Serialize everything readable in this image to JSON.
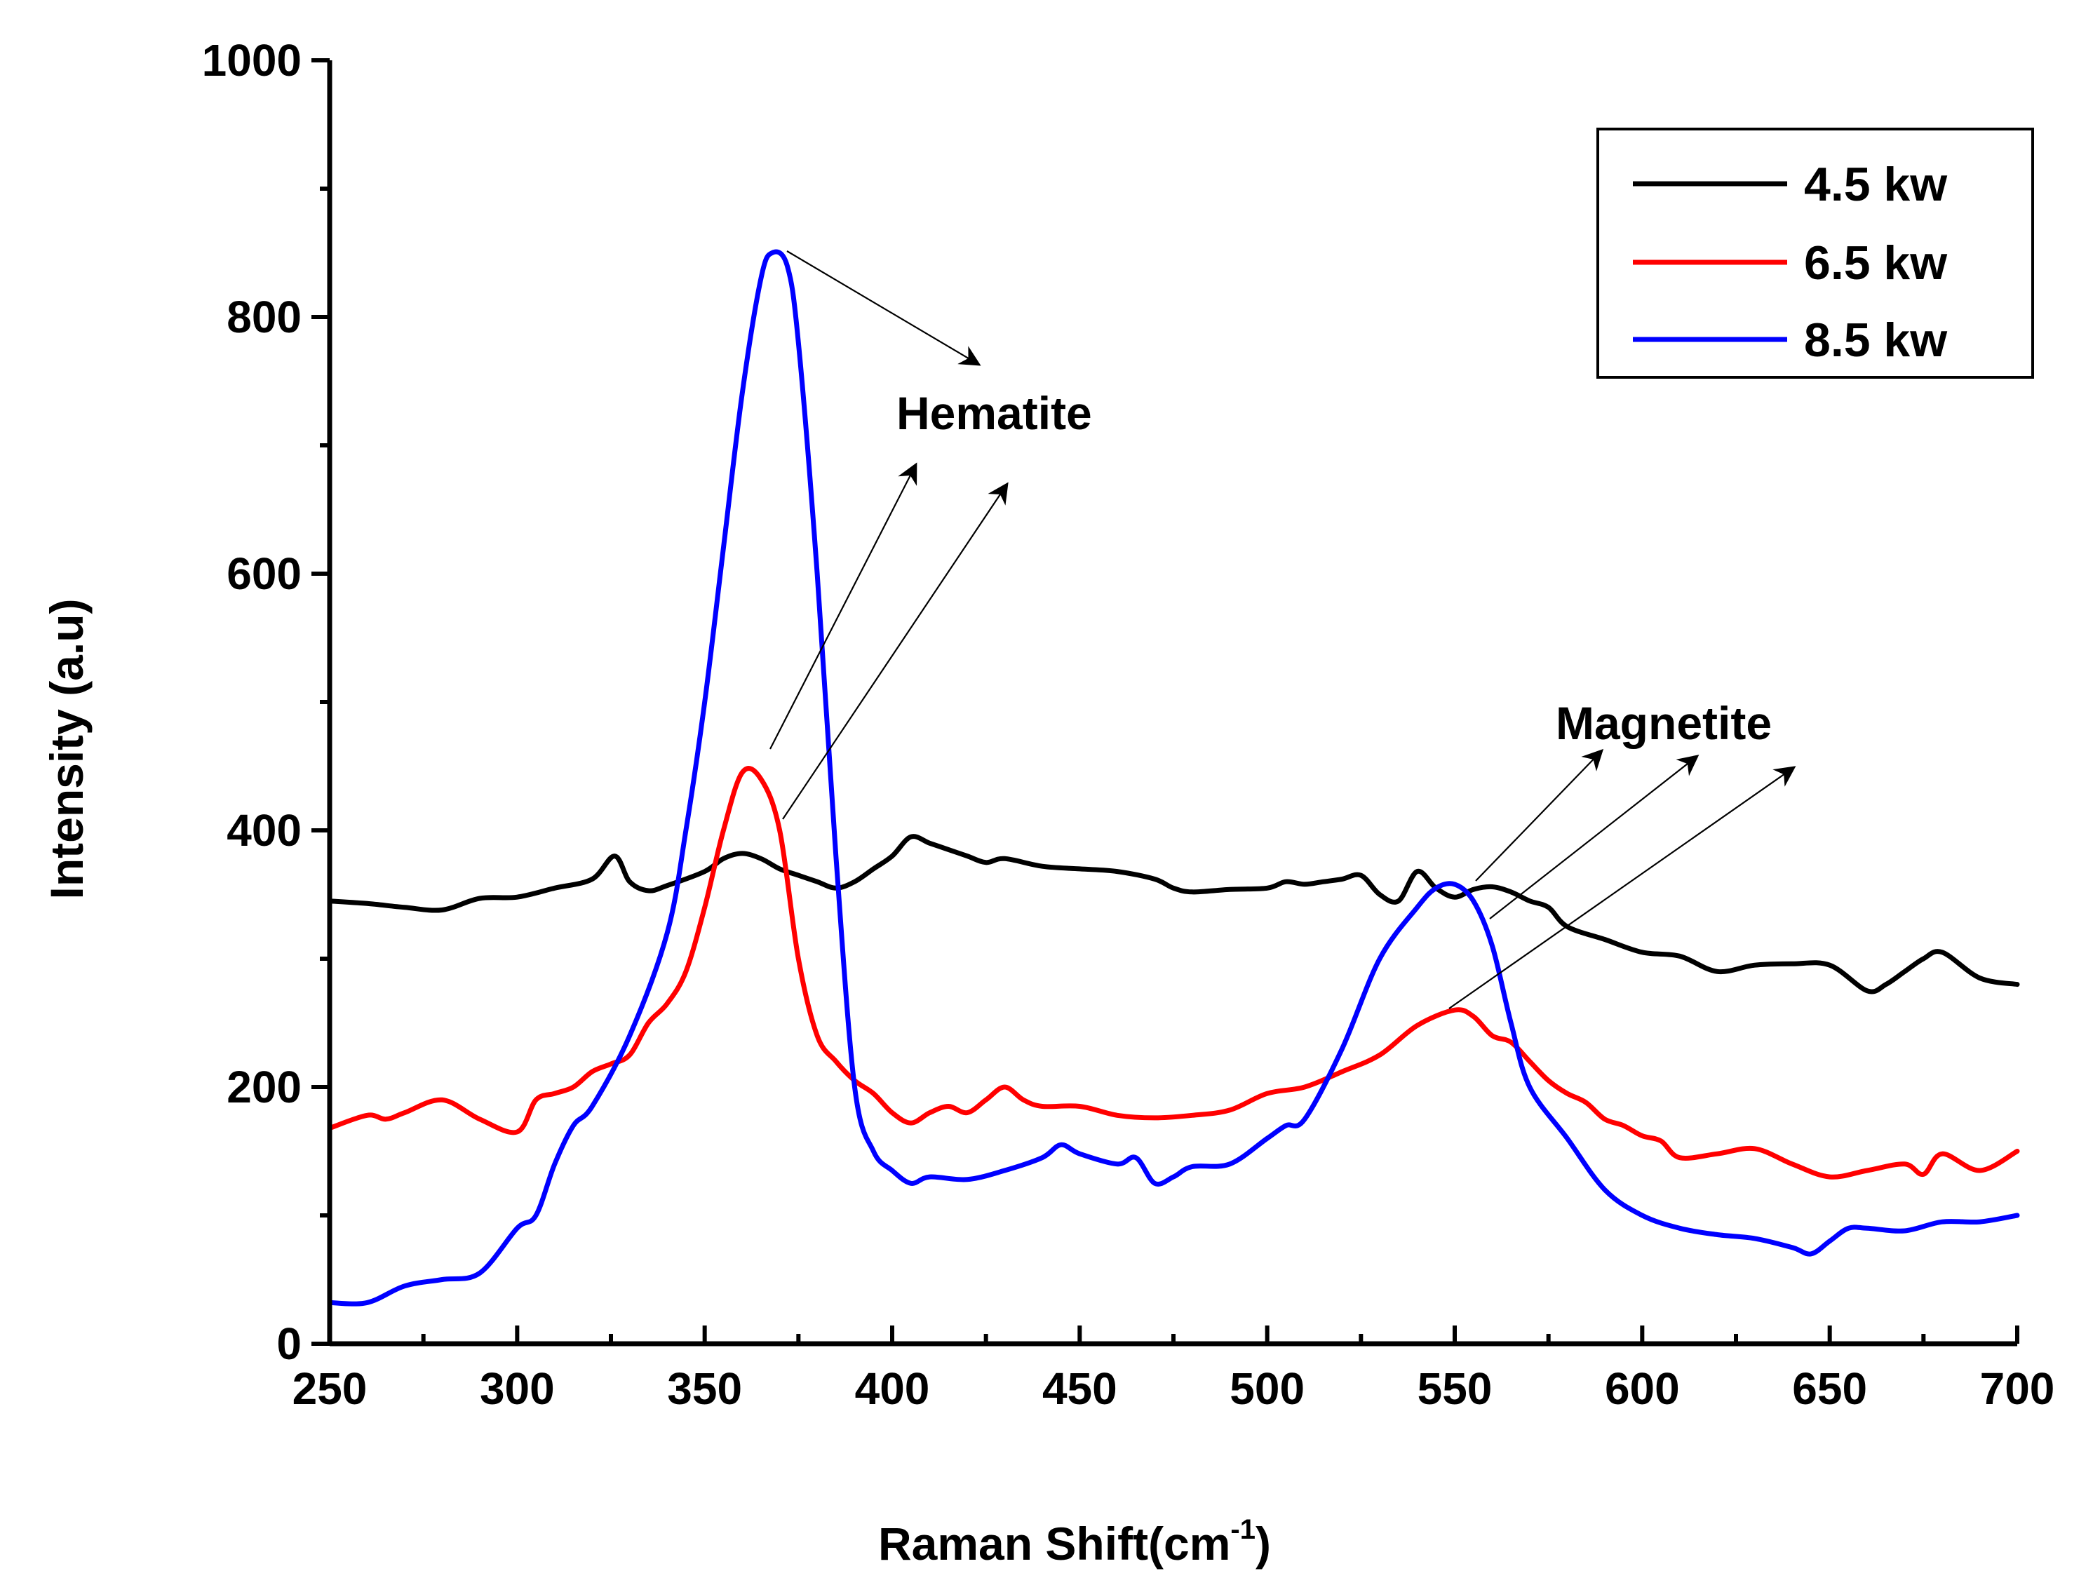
{
  "chart_data": {
    "type": "line",
    "xlabel": "Raman Shift(cm",
    "xlabel_sup": "-1",
    "xlabel_end": ")",
    "ylabel": "Intensity (a.u)",
    "xlim": [
      250,
      700
    ],
    "ylim": [
      0,
      1000
    ],
    "xticks": [
      250,
      300,
      350,
      400,
      450,
      500,
      550,
      600,
      650,
      700
    ],
    "yticks": [
      0,
      200,
      400,
      600,
      800,
      1000
    ],
    "legend_position": "top-right",
    "series": [
      {
        "name": "4.5 kw",
        "color": "#000000",
        "x": [
          250,
          260,
          270,
          280,
          290,
          300,
          310,
          320,
          326,
          330,
          335,
          340,
          350,
          355,
          360,
          365,
          370,
          375,
          380,
          385,
          390,
          395,
          400,
          405,
          410,
          415,
          420,
          425,
          430,
          440,
          450,
          460,
          470,
          475,
          480,
          490,
          500,
          505,
          510,
          515,
          520,
          525,
          530,
          535,
          540,
          545,
          550,
          555,
          560,
          565,
          570,
          575,
          580,
          590,
          600,
          610,
          620,
          630,
          640,
          650,
          660,
          665,
          670,
          675,
          680,
          690,
          700
        ],
        "values": [
          345,
          343,
          340,
          338,
          347,
          348,
          355,
          362,
          380,
          360,
          353,
          357,
          368,
          378,
          382,
          378,
          370,
          365,
          360,
          355,
          360,
          370,
          380,
          395,
          390,
          385,
          380,
          375,
          378,
          372,
          370,
          368,
          362,
          355,
          352,
          354,
          355,
          360,
          358,
          360,
          362,
          365,
          350,
          345,
          368,
          355,
          348,
          354,
          356,
          352,
          345,
          340,
          325,
          315,
          305,
          302,
          290,
          295,
          296,
          295,
          275,
          280,
          290,
          300,
          305,
          285,
          280
        ]
      },
      {
        "name": "6.5 kw",
        "color": "#ff0000",
        "x": [
          250,
          260,
          265,
          270,
          280,
          290,
          300,
          305,
          310,
          315,
          320,
          325,
          330,
          335,
          340,
          345,
          350,
          355,
          360,
          365,
          370,
          375,
          380,
          385,
          390,
          395,
          400,
          405,
          410,
          415,
          420,
          425,
          430,
          435,
          440,
          450,
          460,
          470,
          480,
          490,
          500,
          510,
          520,
          530,
          540,
          550,
          555,
          560,
          565,
          570,
          575,
          580,
          585,
          590,
          595,
          600,
          605,
          610,
          620,
          630,
          640,
          650,
          660,
          670,
          675,
          680,
          690,
          700
        ],
        "values": [
          168,
          178,
          175,
          180,
          190,
          175,
          165,
          190,
          195,
          200,
          212,
          218,
          225,
          250,
          265,
          290,
          340,
          400,
          445,
          440,
          400,
          300,
          240,
          220,
          205,
          195,
          180,
          172,
          180,
          185,
          180,
          190,
          200,
          190,
          185,
          185,
          178,
          176,
          178,
          182,
          195,
          200,
          212,
          225,
          248,
          260,
          255,
          240,
          235,
          220,
          205,
          195,
          188,
          175,
          170,
          162,
          158,
          145,
          148,
          152,
          140,
          130,
          135,
          140,
          132,
          148,
          135,
          150
        ]
      },
      {
        "name": "8.5 kw",
        "color": "#0000ff",
        "x": [
          250,
          260,
          270,
          280,
          290,
          300,
          305,
          310,
          315,
          320,
          330,
          340,
          345,
          350,
          355,
          360,
          365,
          368,
          372,
          375,
          380,
          385,
          390,
          395,
          400,
          405,
          410,
          420,
          430,
          440,
          445,
          450,
          460,
          465,
          470,
          475,
          480,
          490,
          500,
          505,
          510,
          520,
          530,
          540,
          545,
          550,
          555,
          560,
          565,
          570,
          580,
          590,
          600,
          610,
          620,
          630,
          640,
          645,
          650,
          655,
          660,
          670,
          680,
          690,
          700
        ],
        "values": [
          32,
          32,
          45,
          50,
          55,
          90,
          100,
          140,
          170,
          185,
          240,
          320,
          400,
          500,
          620,
          740,
          830,
          850,
          840,
          780,
          600,
          380,
          200,
          150,
          135,
          125,
          130,
          128,
          135,
          145,
          155,
          148,
          140,
          145,
          125,
          130,
          138,
          140,
          160,
          170,
          175,
          230,
          300,
          340,
          355,
          358,
          345,
          310,
          250,
          200,
          160,
          120,
          100,
          90,
          85,
          82,
          75,
          70,
          80,
          90,
          90,
          88,
          95,
          95,
          100
        ]
      }
    ],
    "annotations": [
      {
        "text": "Hematite",
        "x": 380,
        "y": 725
      },
      {
        "text": "Magnetite",
        "x": 545,
        "y": 480
      }
    ]
  }
}
